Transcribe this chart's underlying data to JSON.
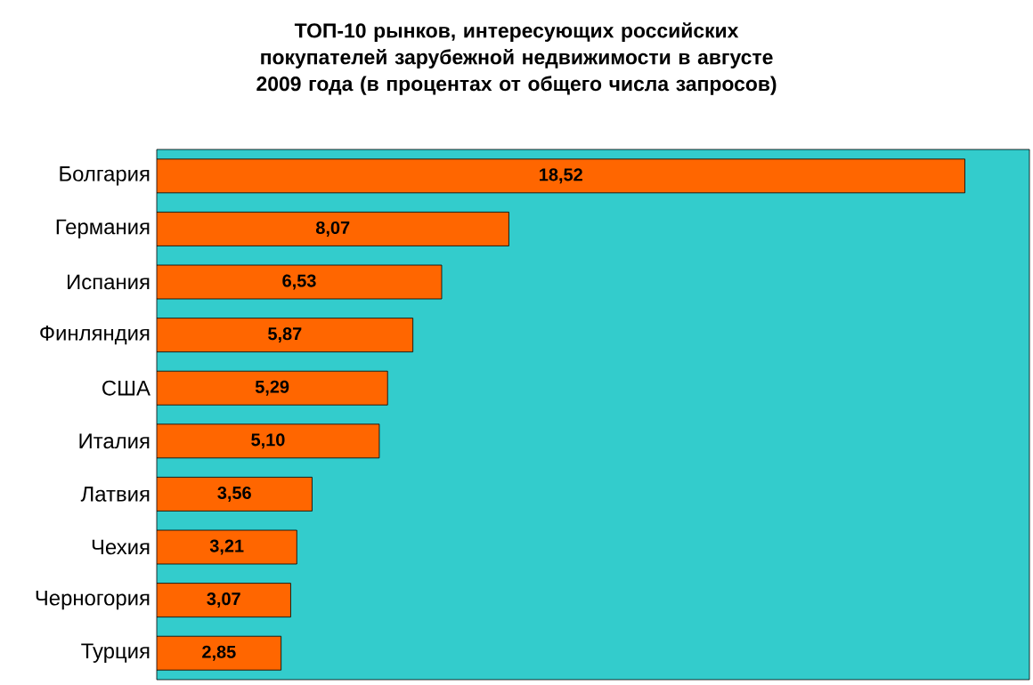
{
  "chart_data": {
    "type": "bar",
    "orientation": "horizontal",
    "title": "ТОП-10 рынков, интересующих российских покупателей зарубежной недвижимости в августе 2009 года (в процентах от общего числа запросов)",
    "categories": [
      "Болгария",
      "Германия",
      "Испания",
      "Финляндия",
      "США",
      "Италия",
      "Латвия",
      "Чехия",
      "Черногория",
      "Турция"
    ],
    "values": [
      18.52,
      8.07,
      6.53,
      5.87,
      5.29,
      5.1,
      3.56,
      3.21,
      3.07,
      2.85
    ],
    "value_labels": [
      "18,52",
      "8,07",
      "6,53",
      "5,87",
      "5,29",
      "5,10",
      "3,56",
      "3,21",
      "3,07",
      "2,85"
    ],
    "color": "#ff6600",
    "xlim": [
      0,
      20
    ]
  }
}
